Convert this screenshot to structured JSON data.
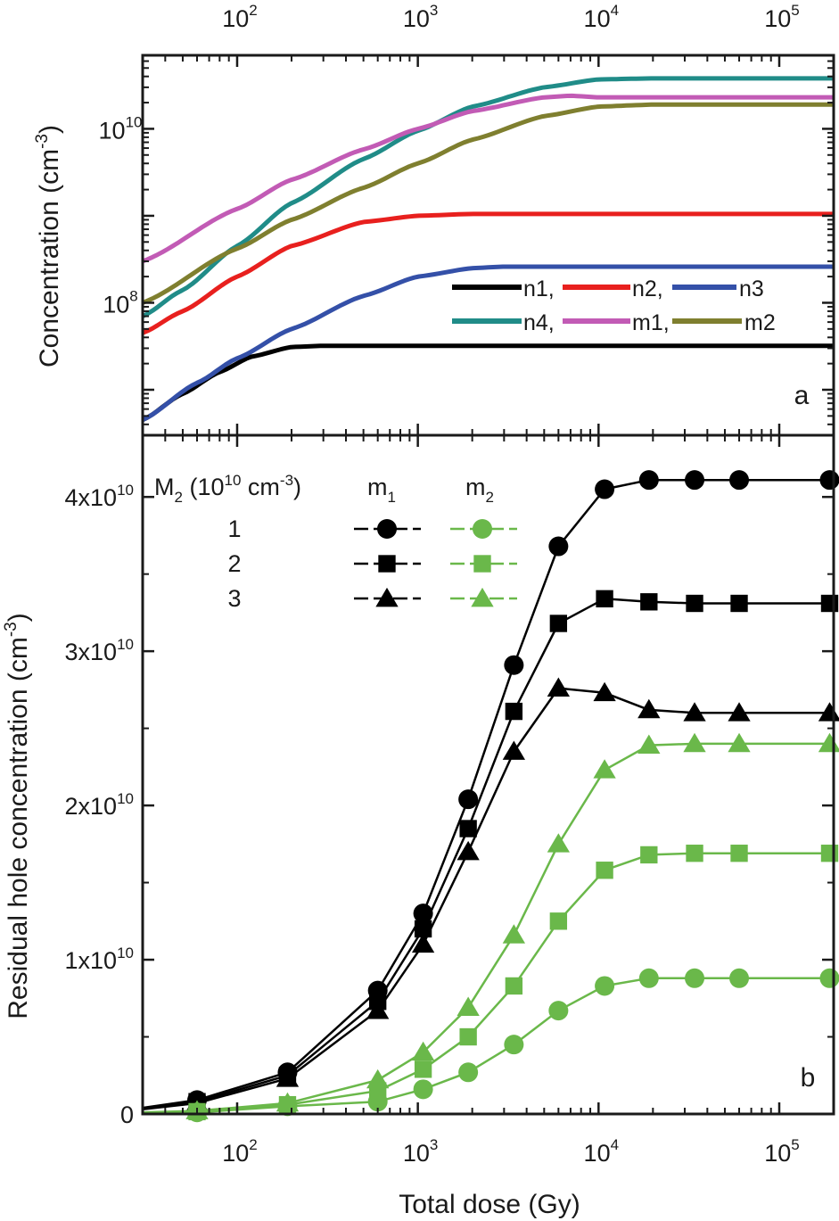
{
  "chart_data": [
    {
      "type": "line",
      "panel_label": "a",
      "xlabel": "",
      "ylabel": "Concentration (cm",
      "ylabel_sup": "-3",
      "ylabel_close": ")",
      "xscale": "log",
      "yscale": "log",
      "xlim": [
        30,
        200000
      ],
      "ylim": [
        3000000.0,
        70000000000.0
      ],
      "top_tick_labels": [
        {
          "base": "10",
          "exp": "2",
          "value": 100
        },
        {
          "base": "10",
          "exp": "3",
          "value": 1000
        },
        {
          "base": "10",
          "exp": "4",
          "value": 10000
        },
        {
          "base": "10",
          "exp": "5",
          "value": 100000
        }
      ],
      "y_tick_labels": [
        {
          "base": "10",
          "exp": "8",
          "value": 100000000
        },
        {
          "base": "10",
          "exp": "10",
          "value": 10000000000
        }
      ],
      "legend_labels": [
        "n1,",
        "n2,",
        "n3",
        "n4,",
        "m1,",
        "m2"
      ],
      "series": [
        {
          "name": "n1",
          "color": "#000000",
          "x": [
            30,
            50,
            80,
            120,
            200,
            300,
            500,
            1000,
            10000,
            200000
          ],
          "y": [
            4500000.0,
            9000000.0,
            16000000.0,
            24000000.0,
            31000000.0,
            32000000.0,
            32000000.0,
            32000000.0,
            32000000.0,
            32000000.0
          ]
        },
        {
          "name": "n2",
          "color": "#e8201e",
          "x": [
            30,
            50,
            100,
            200,
            500,
            1000,
            2000,
            5000,
            200000
          ],
          "y": [
            45000000.0,
            80000000.0,
            200000000.0,
            450000000.0,
            850000000.0,
            1000000000.0,
            1050000000.0,
            1050000000.0,
            1050000000.0
          ]
        },
        {
          "name": "n3",
          "color": "#3450a8",
          "x": [
            30,
            60,
            100,
            200,
            500,
            1000,
            2000,
            3000,
            5000,
            200000
          ],
          "y": [
            4500000.0,
            12000000.0,
            23000000.0,
            50000000.0,
            120000000.0,
            200000000.0,
            250000000.0,
            260000000.0,
            260000000.0,
            260000000.0
          ]
        },
        {
          "name": "n4",
          "color": "#208c88",
          "x": [
            30,
            50,
            100,
            200,
            500,
            1000,
            2000,
            5000,
            10000,
            20000,
            200000
          ],
          "y": [
            70000000.0,
            140000000.0,
            450000000.0,
            1400000000.0,
            4500000000.0,
            9500000000.0,
            18000000000.0,
            30000000000.0,
            37000000000.0,
            38000000000.0,
            38000000000.0
          ]
        },
        {
          "name": "m1",
          "color": "#c25bb5",
          "x": [
            30,
            100,
            200,
            500,
            1000,
            2000,
            5000,
            7000,
            10000,
            20000,
            200000
          ],
          "y": [
            300000000.0,
            1200000000.0,
            2600000000.0,
            5800000000.0,
            10000000000.0,
            16000000000.0,
            23000000000.0,
            24000000000.0,
            23000000000.0,
            23000000000.0,
            23000000000.0
          ]
        },
        {
          "name": "m2",
          "color": "#7f7f2f",
          "x": [
            30,
            100,
            200,
            500,
            1000,
            2000,
            5000,
            10000,
            20000,
            200000
          ],
          "y": [
            100000000.0,
            420000000.0,
            900000000.0,
            2100000000.0,
            4000000000.0,
            7500000000.0,
            14000000000.0,
            18000000000.0,
            19000000000.0,
            19000000000.0
          ]
        }
      ]
    },
    {
      "type": "line",
      "panel_label": "b",
      "xlabel": "Total dose (Gy)",
      "ylabel": "Residual hole concentration (cm",
      "ylabel_sup": "-3",
      "ylabel_close": ")",
      "xscale": "log",
      "xlim": [
        30,
        200000
      ],
      "ylim": [
        0,
        44000000000.0
      ],
      "x_tick_labels": [
        {
          "base": "10",
          "exp": "2",
          "value": 100
        },
        {
          "base": "10",
          "exp": "3",
          "value": 1000
        },
        {
          "base": "10",
          "exp": "4",
          "value": 10000
        },
        {
          "base": "10",
          "exp": "5",
          "value": 100000
        }
      ],
      "y_tick_labels": [
        {
          "text": "0",
          "value": 0
        },
        {
          "text": "1x10",
          "exp": "10",
          "value": 10000000000
        },
        {
          "text": "2x10",
          "exp": "10",
          "value": 20000000000
        },
        {
          "text": "3x10",
          "exp": "10",
          "value": 30000000000
        },
        {
          "text": "4x10",
          "exp": "10",
          "value": 40000000000
        }
      ],
      "legend": {
        "header_main": "M",
        "header_sub": "2",
        "header_rest": " (10",
        "header_exp": "10",
        "header_unit": " cm",
        "header_unit_exp": "-3",
        "header_close": ")",
        "col1_main": "m",
        "col1_sub": "1",
        "col2_main": "m",
        "col2_sub": "2",
        "rows": [
          "1",
          "2",
          "3"
        ]
      },
      "x": [
        30,
        60,
        190,
        600,
        1070,
        1900,
        3400,
        6000,
        10800,
        19000,
        34000,
        60000,
        190000
      ],
      "series": [
        {
          "name": "m1, M2=1",
          "color": "#000000",
          "marker": "circle",
          "markers_from_index": 1,
          "values": [
            400000000.0,
            900000000.0,
            2700000000.0,
            8000000000.0,
            13000000000.0,
            20400000000.0,
            29100000000.0,
            36800000000.0,
            40500000000.0,
            41100000000.0,
            41100000000.0,
            41100000000.0,
            41100000000.0
          ]
        },
        {
          "name": "m1, M2=2",
          "color": "#000000",
          "marker": "square",
          "markers_from_index": 1,
          "values": [
            350000000.0,
            800000000.0,
            2500000000.0,
            7300000000.0,
            12000000000.0,
            18500000000.0,
            26100000000.0,
            31800000000.0,
            33400000000.0,
            33200000000.0,
            33100000000.0,
            33100000000.0,
            33100000000.0
          ]
        },
        {
          "name": "m1, M2=3",
          "color": "#000000",
          "marker": "triangle",
          "markers_from_index": 1,
          "values": [
            300000000.0,
            700000000.0,
            2300000000.0,
            6700000000.0,
            11000000000.0,
            17000000000.0,
            23500000000.0,
            27600000000.0,
            27300000000.0,
            26200000000.0,
            26000000000.0,
            26000000000.0,
            26000000000.0
          ]
        },
        {
          "name": "m2, M2=1",
          "color": "#6ab84a",
          "marker": "circle",
          "markers_from_index": 1,
          "values": [
            100000000.0,
            100000000.0,
            500000000.0,
            800000000.0,
            1600000000.0,
            2700000000.0,
            4500000000.0,
            6700000000.0,
            8300000000.0,
            8800000000.0,
            8800000000.0,
            8800000000.0,
            8800000000.0
          ]
        },
        {
          "name": "m2, M2=2",
          "color": "#6ab84a",
          "marker": "square",
          "markers_from_index": 1,
          "values": [
            100000000.0,
            150000000.0,
            600000000.0,
            1500000000.0,
            2900000000.0,
            5000000000.0,
            8300000000.0,
            12500000000.0,
            15800000000.0,
            16800000000.0,
            16900000000.0,
            16900000000.0,
            16900000000.0
          ]
        },
        {
          "name": "m2, M2=3",
          "color": "#6ab84a",
          "marker": "triangle",
          "markers_from_index": 1,
          "values": [
            100000000.0,
            200000000.0,
            700000000.0,
            2200000000.0,
            4000000000.0,
            6900000000.0,
            11600000000.0,
            17500000000.0,
            22300000000.0,
            23900000000.0,
            24000000000.0,
            24000000000.0,
            24000000000.0
          ]
        }
      ]
    }
  ]
}
